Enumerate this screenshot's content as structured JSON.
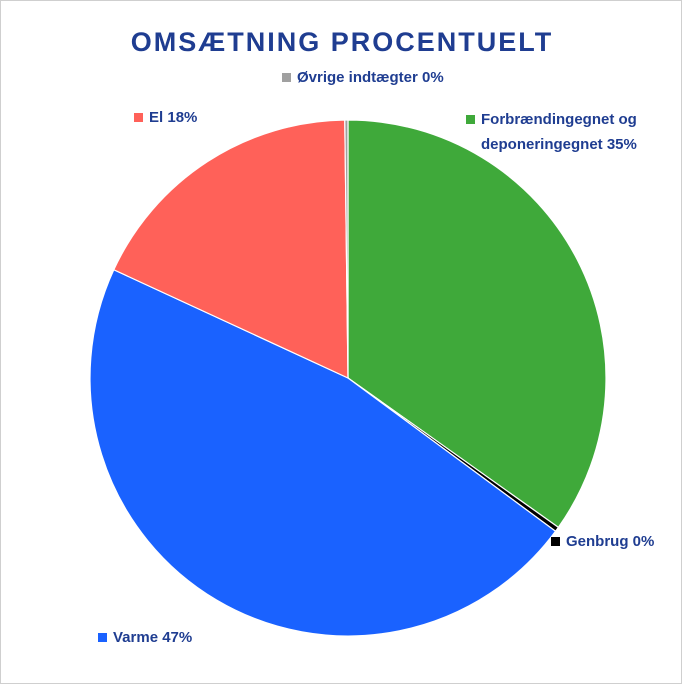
{
  "chart_data": {
    "type": "pie",
    "title": "OMSÆTNING PROCENTUELT",
    "categories": [
      "Forbrændingegnet og deponeringegnet",
      "Genbrug",
      "Varme",
      "El",
      "Øvrige indtægter"
    ],
    "values": [
      35,
      0.3,
      47,
      18,
      0.2
    ],
    "value_labels": [
      "35%",
      "0%",
      "47%",
      "18%",
      "0%"
    ],
    "colors": [
      "#3fa93a",
      "#000000",
      "#1a62ff",
      "#ff6159",
      "#a0a0a0"
    ]
  }
}
